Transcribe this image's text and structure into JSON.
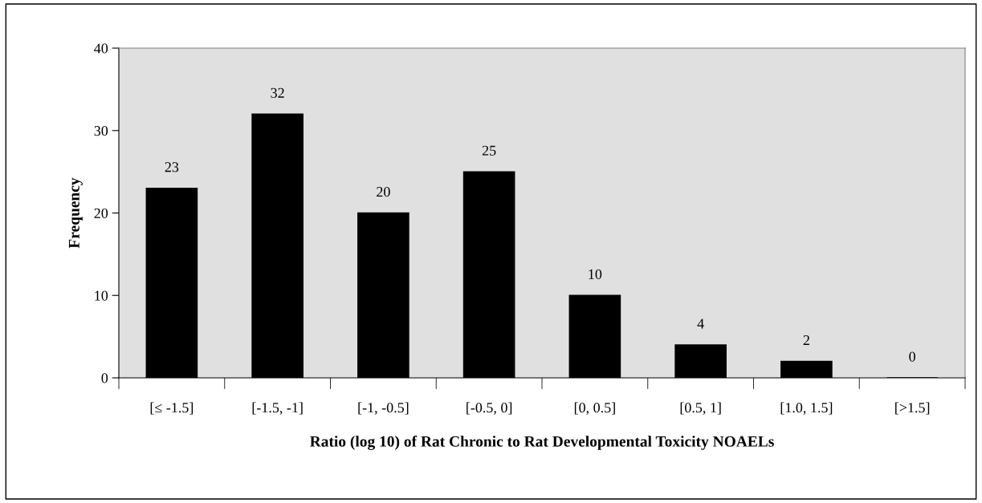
{
  "chart_data": {
    "type": "bar",
    "xlabel": "Ratio (log 10) of Rat Chronic to Rat Developmental Toxicity NOAELs",
    "ylabel": "Frequency",
    "categories": [
      "[≤ -1.5]",
      "[-1.5, -1]",
      "[-1, -0.5]",
      "[-0.5, 0]",
      "[0, 0.5]",
      "[0.5, 1]",
      "[1.0, 1.5]",
      "[>1.5]"
    ],
    "values": [
      23,
      32,
      20,
      25,
      10,
      4,
      2,
      0
    ],
    "color": "#000000",
    "ylim": [
      0,
      40
    ],
    "yticks": [
      0,
      10,
      20,
      30,
      40
    ],
    "grid": false,
    "legend": false,
    "data_labels": true
  }
}
